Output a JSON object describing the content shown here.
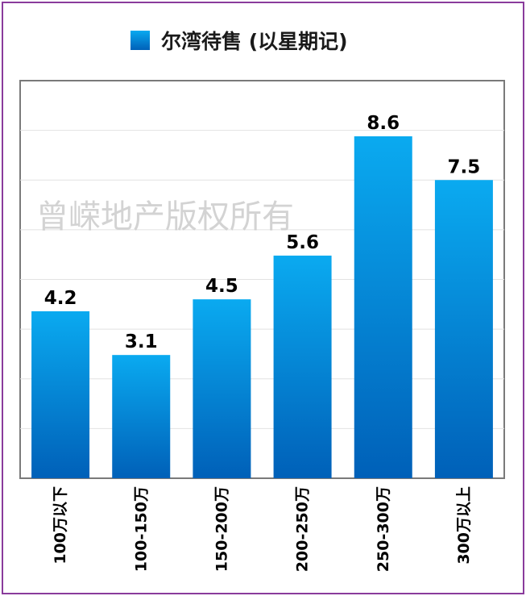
{
  "chart_data": {
    "type": "bar",
    "categories": [
      "100万以下",
      "100-150万",
      "150-200万",
      "200-250万",
      "250-300万",
      "300万以上"
    ],
    "series": [
      {
        "name": "尔湾待售 (以星期记)",
        "values": [
          4.2,
          3.1,
          4.5,
          5.6,
          8.6,
          7.5
        ]
      }
    ],
    "value_labels": [
      "4.2",
      "3.1",
      "4.5",
      "5.6",
      "8.6",
      "7.5"
    ],
    "ylim": [
      0,
      10
    ],
    "gridlines": true,
    "legend_position": "top-center",
    "bar_color_top": "#0aaaf0",
    "bar_color_bottom": "#0060b8"
  },
  "watermark": "曾嵘地产版权所有"
}
